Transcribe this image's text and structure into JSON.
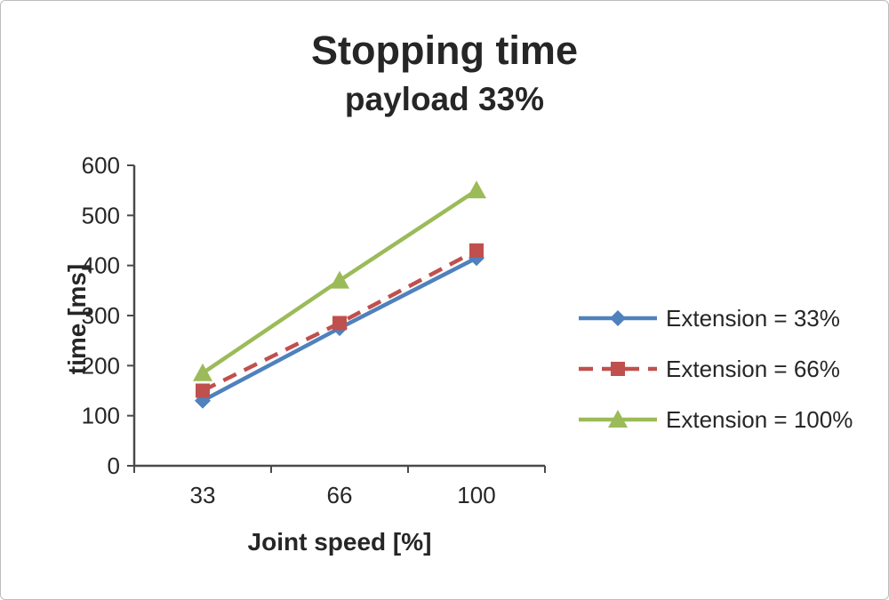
{
  "chart_data": {
    "type": "line",
    "title": "Stopping time",
    "subtitle": "payload 33%",
    "xlabel": "Joint speed [%]",
    "ylabel": "time [ms]",
    "categories": [
      "33",
      "66",
      "100"
    ],
    "series": [
      {
        "name": "Extension = 33%",
        "values": [
          130,
          275,
          415
        ],
        "color": "#4F81BD",
        "marker": "diamond",
        "dash": "solid"
      },
      {
        "name": "Extension = 66%",
        "values": [
          150,
          285,
          430
        ],
        "color": "#C0504D",
        "marker": "square",
        "dash": "dashed"
      },
      {
        "name": "Extension = 100%",
        "values": [
          185,
          370,
          550
        ],
        "color": "#9BBB59",
        "marker": "triangle",
        "dash": "solid"
      }
    ],
    "ylim": [
      0,
      600
    ],
    "yticks": [
      0,
      100,
      200,
      300,
      400,
      500,
      600
    ],
    "ytick_step": 100,
    "legend_position": "right",
    "grid": false,
    "axis_color": "#4a4a4a"
  }
}
